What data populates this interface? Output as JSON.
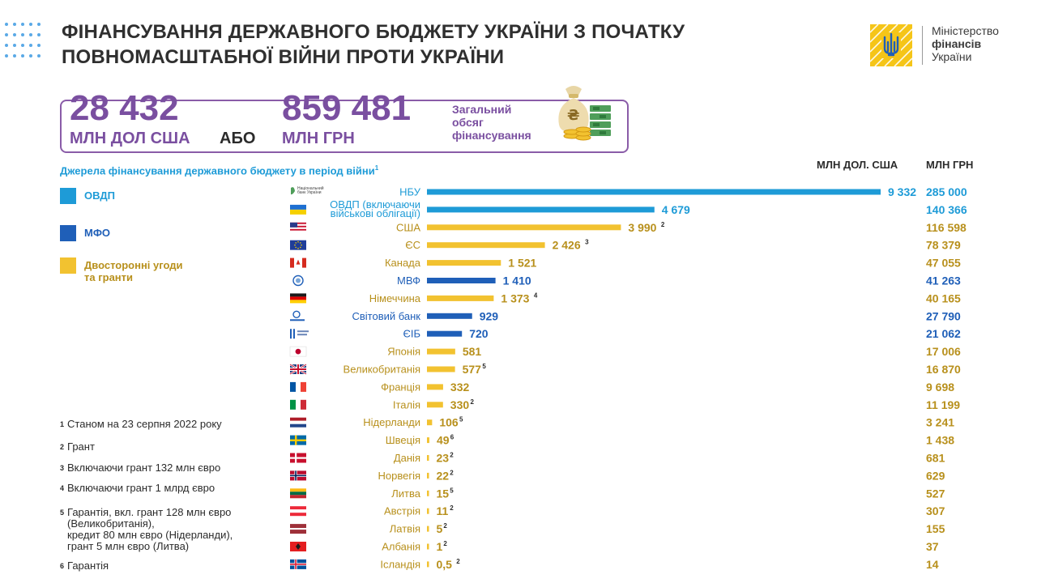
{
  "header": {
    "title_line1": "ФІНАНСУВАННЯ ДЕРЖАВНОГО БЮДЖЕТУ УКРАЇНИ З ПОЧАТКУ",
    "title_line2": "ПОВНОМАСШТАБНОЇ ВІЙНИ ПРОТИ УКРАЇНИ"
  },
  "logo": {
    "line1": "Міністерство",
    "line2": "фінансів",
    "line3": "України"
  },
  "totals": {
    "usd_value": "28 432",
    "usd_unit": "МЛН ДОЛ США",
    "or_word": "АБО",
    "uah_value": "859 481",
    "uah_unit": "МЛН ГРН",
    "caption_line1": "Загальний",
    "caption_line2": "обсяг",
    "caption_line3": "фінансування"
  },
  "subheading": "Джерела фінансування державного бюджету в період війни",
  "subheading_mark": "1",
  "column_headers": {
    "usd": "МЛН ДОЛ. США",
    "uah": "МЛН ГРН"
  },
  "legend": [
    {
      "label_lines": [
        "ОВДП"
      ],
      "color": "#1e9bd7"
    },
    {
      "label_lines": [
        "МФО"
      ],
      "color": "#1f5fb8"
    },
    {
      "label_lines": [
        "Двосторонні угоди",
        "та гранти"
      ],
      "color": "#f2c230"
    }
  ],
  "footnotes": [
    {
      "mark": "1",
      "lines": [
        "Станом на 23 серпня 2022 року"
      ]
    },
    {
      "mark": "2",
      "lines": [
        "Грант"
      ]
    },
    {
      "mark": "3",
      "lines": [
        "Включаючи грант 132 млн євро"
      ]
    },
    {
      "mark": "4",
      "lines": [
        "Включаючи грант 1 млрд євро"
      ]
    },
    {
      "mark": "5",
      "lines": [
        "Гарантія, вкл. грант 128 млн євро",
        "(Великобританія),",
        "кредит 80 млн  євро (Нідерланди),",
        "грант 5 млн євро (Литва)"
      ]
    },
    {
      "mark": "6",
      "lines": [
        "Гарантія"
      ]
    }
  ],
  "nbu_logo_text": [
    "Національний",
    "банк України"
  ],
  "colors": {
    "ovdp": "#1e9bd7",
    "mfo": "#1f5fb8",
    "bilateral": "#f2c230",
    "bilateral_text": "#b8901c",
    "accent_purple": "#7a4fa0"
  },
  "chart_data": {
    "type": "bar",
    "orientation": "horizontal",
    "x_unit": "МЛН ДОЛ. США",
    "xlim": [
      0,
      9332
    ],
    "rows": [
      {
        "name_lines": [
          "НБУ"
        ],
        "usd": 9332,
        "usd_label": "9 332",
        "note": "",
        "uah": "285 000",
        "group": "ovdp",
        "icon": "nbu-logo"
      },
      {
        "name_lines": [
          "ОВДП (включаючи",
          "військові облігації)"
        ],
        "usd": 4679,
        "usd_label": "4 679",
        "note": "",
        "uah": "140 366",
        "group": "ovdp",
        "icon": "ukraine-flag"
      },
      {
        "name_lines": [
          "США"
        ],
        "usd": 3990,
        "usd_label": "3 990",
        "note": "2",
        "uah": "116 598",
        "group": "bilateral",
        "icon": "usa-flag"
      },
      {
        "name_lines": [
          "ЄС"
        ],
        "usd": 2426,
        "usd_label": "2 426",
        "note": "3",
        "uah": "78 379",
        "group": "bilateral",
        "icon": "eu-flag"
      },
      {
        "name_lines": [
          "Канада"
        ],
        "usd": 1521,
        "usd_label": "1 521",
        "note": "",
        "uah": "47 055",
        "group": "bilateral",
        "icon": "canada-flag"
      },
      {
        "name_lines": [
          "МВФ"
        ],
        "usd": 1410,
        "usd_label": "1 410",
        "note": "",
        "uah": "41 263",
        "group": "mfo",
        "icon": "imf-logo"
      },
      {
        "name_lines": [
          "Німеччина"
        ],
        "usd": 1373,
        "usd_label": "1 373",
        "note": "4",
        "uah": "40 165",
        "group": "bilateral",
        "icon": "germany-flag"
      },
      {
        "name_lines": [
          "Світовий  банк"
        ],
        "usd": 929,
        "usd_label": "929",
        "note": "",
        "uah": "27 790",
        "group": "mfo",
        "icon": "world-bank-logo"
      },
      {
        "name_lines": [
          "ЄІБ"
        ],
        "usd": 720,
        "usd_label": "720",
        "note": "",
        "uah": "21 062",
        "group": "mfo",
        "icon": "eib-logo"
      },
      {
        "name_lines": [
          "Японія"
        ],
        "usd": 581,
        "usd_label": "581",
        "note": "",
        "uah": "17 006",
        "group": "bilateral",
        "icon": "japan-flag"
      },
      {
        "name_lines": [
          "Великобританія"
        ],
        "usd": 577,
        "usd_label": "577",
        "note": "5",
        "uah": "16 870",
        "group": "bilateral",
        "icon": "uk-flag"
      },
      {
        "name_lines": [
          "Франція"
        ],
        "usd": 332,
        "usd_label": "332",
        "note": "",
        "uah": "9 698",
        "group": "bilateral",
        "icon": "france-flag"
      },
      {
        "name_lines": [
          "Італія"
        ],
        "usd": 330,
        "usd_label": "330",
        "note": "2",
        "uah": "11 199",
        "group": "bilateral",
        "icon": "italy-flag"
      },
      {
        "name_lines": [
          "Нідерланди"
        ],
        "usd": 106,
        "usd_label": "106",
        "note": "5",
        "uah": "3 241",
        "group": "bilateral",
        "icon": "netherlands-flag"
      },
      {
        "name_lines": [
          "Швеція"
        ],
        "usd": 49,
        "usd_label": "49",
        "note": "6",
        "uah": "1 438",
        "group": "bilateral",
        "icon": "sweden-flag"
      },
      {
        "name_lines": [
          "Данія"
        ],
        "usd": 23,
        "usd_label": "23",
        "note": "2",
        "uah": "681",
        "group": "bilateral",
        "icon": "denmark-flag"
      },
      {
        "name_lines": [
          "Норвегія"
        ],
        "usd": 22,
        "usd_label": "22",
        "note": "2",
        "uah": "629",
        "group": "bilateral",
        "icon": "norway-flag"
      },
      {
        "name_lines": [
          "Литва"
        ],
        "usd": 15,
        "usd_label": "15",
        "note": "5",
        "uah": "527",
        "group": "bilateral",
        "icon": "lithuania-flag"
      },
      {
        "name_lines": [
          "Австрія"
        ],
        "usd": 11,
        "usd_label": "11",
        "note": "2",
        "uah": "307",
        "group": "bilateral",
        "icon": "austria-flag"
      },
      {
        "name_lines": [
          "Латвія"
        ],
        "usd": 5,
        "usd_label": "5",
        "note": "2",
        "uah": "155",
        "group": "bilateral",
        "icon": "latvia-flag"
      },
      {
        "name_lines": [
          "Албанія"
        ],
        "usd": 1,
        "usd_label": "1",
        "note": "2",
        "uah": "37",
        "group": "bilateral",
        "icon": "albania-flag"
      },
      {
        "name_lines": [
          "Ісландія"
        ],
        "usd": 0.5,
        "usd_label": "0,5",
        "note": "2",
        "uah": "14",
        "group": "bilateral",
        "icon": "iceland-flag"
      }
    ]
  }
}
